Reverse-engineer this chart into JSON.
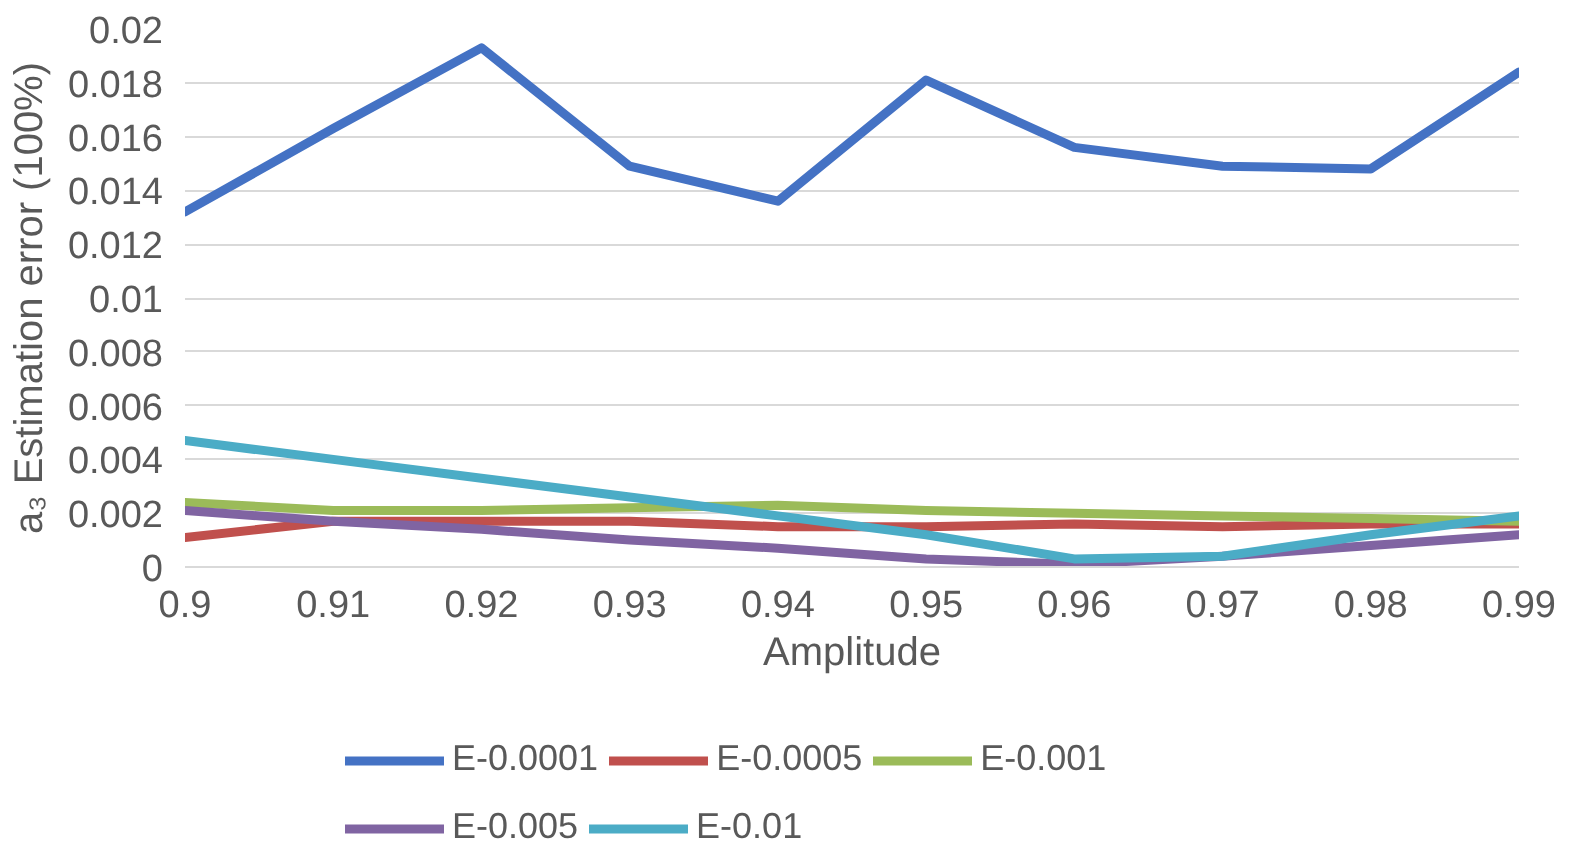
{
  "chart_data": {
    "type": "line",
    "xlabel": "Amplitude",
    "ylabel": "a₃ Estimation error (100%)",
    "x": [
      0.9,
      0.91,
      0.92,
      0.93,
      0.94,
      0.95,
      0.96,
      0.97,
      0.98,
      0.99
    ],
    "series": [
      {
        "name": "E-0.0001",
        "color": "#4472c4",
        "values": [
          0.0132,
          0.0163,
          0.0193,
          0.0149,
          0.0136,
          0.0181,
          0.0156,
          0.0149,
          0.0148,
          0.0184
        ]
      },
      {
        "name": "E-0.0005",
        "color": "#c0504d",
        "values": [
          0.0011,
          0.0017,
          0.0017,
          0.0017,
          0.0015,
          0.0015,
          0.0016,
          0.0015,
          0.0016,
          0.0016
        ]
      },
      {
        "name": "E-0.001",
        "color": "#9bbb59",
        "values": [
          0.0024,
          0.0021,
          0.0021,
          0.0022,
          0.0023,
          0.0021,
          0.002,
          0.0019,
          0.0018,
          0.0017
        ]
      },
      {
        "name": "E-0.005",
        "color": "#8064a2",
        "values": [
          0.0021,
          0.0017,
          0.0014,
          0.001,
          0.0007,
          0.0003,
          0.0001,
          0.0004,
          0.0008,
          0.0012
        ]
      },
      {
        "name": "E-0.01",
        "color": "#4bacc6",
        "values": [
          0.0047,
          0.004,
          0.0033,
          0.0026,
          0.0019,
          0.0012,
          0.0003,
          0.0004,
          0.0012,
          0.0019
        ]
      }
    ],
    "xlim": [
      0.9,
      0.99
    ],
    "ylim": [
      0,
      0.02
    ],
    "xticks": [
      0.9,
      0.91,
      0.92,
      0.93,
      0.94,
      0.95,
      0.96,
      0.97,
      0.98,
      0.99
    ],
    "yticks": [
      0,
      0.002,
      0.004,
      0.006,
      0.008,
      0.01,
      0.012,
      0.014,
      0.016,
      0.018,
      0.02
    ],
    "grid": "y",
    "legend": "bottom",
    "marker": "none",
    "line_style": "solid"
  }
}
